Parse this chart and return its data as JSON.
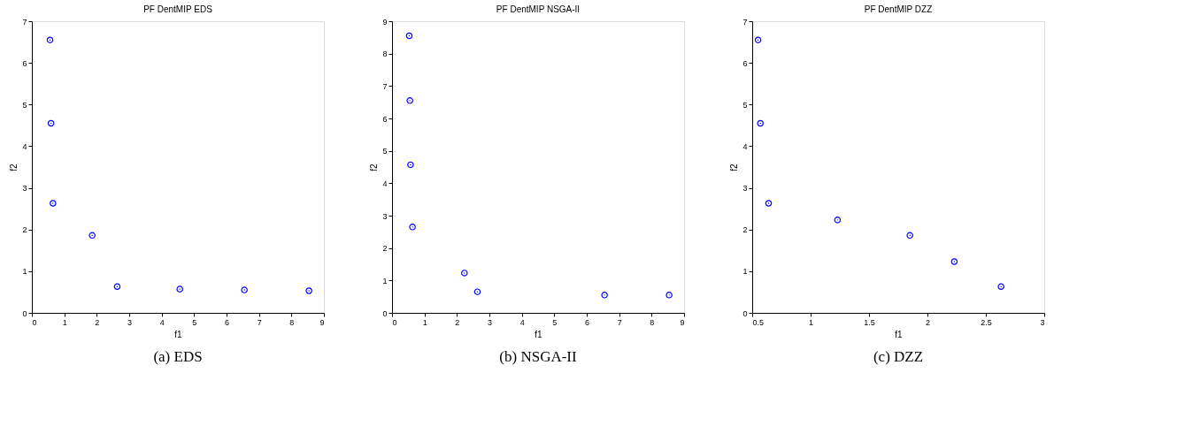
{
  "chart_data": [
    {
      "type": "scatter",
      "title": "PF DentMIP EDS",
      "xlabel": "f1",
      "ylabel": "f2",
      "annotations": [
        "(a) EDS"
      ],
      "marker": "circle",
      "grid": false,
      "xlim": [
        0,
        9
      ],
      "ylim": [
        0,
        7
      ],
      "xticks": [
        0,
        1,
        2,
        3,
        4,
        5,
        6,
        7,
        8,
        9
      ],
      "yticks": [
        0,
        1,
        2,
        3,
        4,
        5,
        6,
        7
      ],
      "x": [
        0.56,
        0.59,
        0.65,
        1.86,
        2.63,
        4.56,
        6.55,
        8.54
      ],
      "series": [
        {
          "color": "#0000ff",
          "values": [
            6.55,
            4.55,
            2.63,
            1.86,
            0.63,
            0.57,
            0.55,
            0.53
          ]
        }
      ]
    },
    {
      "type": "scatter",
      "title": "PF DentMIP NSGA-II",
      "xlabel": "f1",
      "ylabel": "f2",
      "annotations": [
        "(b) NSGA-II"
      ],
      "marker": "circle",
      "grid": false,
      "xlim": [
        0,
        9
      ],
      "ylim": [
        0,
        9
      ],
      "xticks": [
        0,
        1,
        2,
        3,
        4,
        5,
        6,
        7,
        8,
        9
      ],
      "yticks": [
        0,
        1,
        2,
        3,
        4,
        5,
        6,
        7,
        8,
        9
      ],
      "x": [
        0.53,
        0.55,
        0.57,
        0.63,
        2.23,
        2.63,
        6.55,
        8.54
      ],
      "series": [
        {
          "color": "#0000ff",
          "values": [
            8.55,
            6.55,
            4.57,
            2.65,
            1.23,
            0.65,
            0.55,
            0.55
          ]
        }
      ]
    },
    {
      "type": "scatter",
      "title": "PF DentMIP DZZ",
      "xlabel": "f1",
      "ylabel": "f2",
      "annotations": [
        "(c) DZZ"
      ],
      "marker": "circle",
      "grid": false,
      "xlim": [
        0.5,
        3
      ],
      "ylim": [
        0,
        7
      ],
      "xticks": [
        0.5,
        1,
        1.5,
        2,
        2.5,
        3
      ],
      "yticks": [
        0,
        1,
        2,
        3,
        4,
        5,
        6,
        7
      ],
      "x": [
        0.55,
        0.57,
        0.64,
        1.23,
        1.85,
        2.23,
        2.63
      ],
      "series": [
        {
          "color": "#0000ff",
          "values": [
            6.55,
            4.55,
            2.63,
            2.23,
            1.86,
            1.23,
            0.63
          ]
        }
      ]
    }
  ]
}
